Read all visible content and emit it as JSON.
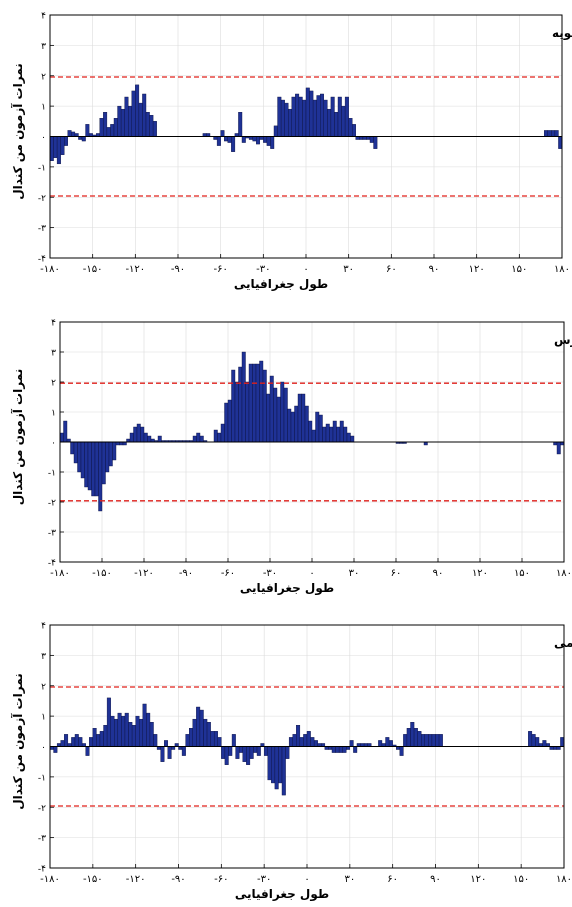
{
  "colors": {
    "bar_fill": "#1f3296",
    "bar_stroke": "#0a0f3c",
    "threshold_line": "#e0201b",
    "grid": "#dcdcdc",
    "axis": "#000000",
    "background": "#ffffff"
  },
  "chart_data": [
    {
      "type": "bar",
      "title": "ماه ژانویه",
      "xlabel": "طول جغرافیایی",
      "ylabel": "نمرات آزمون من کندال",
      "xlim": [
        -180,
        180
      ],
      "ylim": [
        -4,
        4
      ],
      "xticks": [
        -180,
        -150,
        -120,
        -90,
        -60,
        -30,
        0,
        30,
        60,
        90,
        120,
        150,
        180
      ],
      "xtick_labels": [
        "-۱۸۰",
        "-۱۵۰",
        "-۱۲۰",
        "-۹۰",
        "-۶۰",
        "-۳۰",
        "۰",
        "۳۰",
        "۶۰",
        "۹۰",
        "۱۲۰",
        "۱۵۰",
        "۱۸۰"
      ],
      "yticks": [
        -4,
        -3,
        -2,
        -1,
        0,
        1,
        2,
        3,
        4
      ],
      "ytick_labels": [
        "-۴",
        "-۳",
        "-۲",
        "-۱",
        "۰",
        "۱",
        "۲",
        "۳",
        "۴"
      ],
      "thresholds": [
        1.96,
        -1.96
      ],
      "grid": true,
      "bar_width": 2.5,
      "x": [
        -180,
        -177.5,
        -175,
        -172.5,
        -170,
        -167.5,
        -165,
        -162.5,
        -160,
        -157.5,
        -155,
        -152.5,
        -150,
        -147.5,
        -145,
        -142.5,
        -140,
        -137.5,
        -135,
        -132.5,
        -130,
        -127.5,
        -125,
        -122.5,
        -120,
        -117.5,
        -115,
        -112.5,
        -110,
        -107.5,
        -72.5,
        -70,
        -65,
        -62.5,
        -60,
        -57.5,
        -55,
        -52.5,
        -50,
        -47.5,
        -45,
        -42.5,
        -40,
        -37.5,
        -35,
        -32.5,
        -30,
        -27.5,
        -25,
        -22.5,
        -20,
        -17.5,
        -15,
        -12.5,
        -10,
        -7.5,
        -5,
        -2.5,
        0,
        2.5,
        5,
        7.5,
        10,
        12.5,
        15,
        17.5,
        20,
        22.5,
        25,
        27.5,
        30,
        32.5,
        35,
        37.5,
        40,
        42.5,
        45,
        47.5,
        167.5,
        170,
        172.5,
        175,
        177.5
      ],
      "values": [
        -0.8,
        -0.7,
        -0.9,
        -0.6,
        -0.3,
        0.2,
        0.15,
        0.1,
        -0.1,
        -0.15,
        0.4,
        0.1,
        0.05,
        0.1,
        0.6,
        0.8,
        0.3,
        0.4,
        0.6,
        1.0,
        0.9,
        1.3,
        1.0,
        1.5,
        1.7,
        1.1,
        1.4,
        0.8,
        0.7,
        0.5,
        0.1,
        0.1,
        -0.1,
        -0.3,
        0.2,
        -0.15,
        -0.2,
        -0.5,
        0.1,
        0.8,
        -0.2,
        -0.05,
        -0.1,
        -0.15,
        -0.25,
        -0.1,
        -0.2,
        -0.3,
        -0.4,
        0.35,
        1.3,
        1.2,
        1.1,
        0.9,
        1.3,
        1.4,
        1.3,
        1.2,
        1.6,
        1.5,
        1.2,
        1.35,
        1.4,
        1.2,
        0.9,
        1.3,
        0.8,
        1.3,
        1.0,
        1.3,
        0.6,
        0.4,
        -0.1,
        -0.1,
        -0.1,
        -0.1,
        -0.2,
        -0.4,
        0.2,
        0.2,
        0.2,
        0.2,
        -0.4
      ]
    },
    {
      "type": "bar",
      "title": "ماه مارس",
      "xlabel": "طول جغرافیایی",
      "ylabel": "نمرات آزمون من کندال",
      "xlim": [
        -180,
        180
      ],
      "ylim": [
        -4,
        4
      ],
      "xticks": [
        -180,
        -150,
        -120,
        -90,
        -60,
        -30,
        0,
        30,
        60,
        90,
        120,
        150,
        180
      ],
      "xtick_labels": [
        "-۱۸۰",
        "-۱۵۰",
        "-۱۲۰",
        "-۹۰",
        "-۶۰",
        "-۳۰",
        "۰",
        "۳۰",
        "۶۰",
        "۹۰",
        "۱۲۰",
        "۱۵۰",
        "۱۸۰"
      ],
      "yticks": [
        -4,
        -3,
        -2,
        -1,
        0,
        1,
        2,
        3,
        4
      ],
      "ytick_labels": [
        "-۴",
        "-۳",
        "-۲",
        "-۱",
        "۰",
        "۱",
        "۲",
        "۳",
        "۴"
      ],
      "thresholds": [
        1.96,
        -1.96
      ],
      "grid": true,
      "bar_width": 2.5,
      "x": [
        -180,
        -177.5,
        -175,
        -172.5,
        -170,
        -167.5,
        -165,
        -162.5,
        -160,
        -157.5,
        -155,
        -152.5,
        -150,
        -147.5,
        -145,
        -142.5,
        -140,
        -137.5,
        -135,
        -132.5,
        -130,
        -127.5,
        -125,
        -122.5,
        -120,
        -117.5,
        -115,
        -112.5,
        -110,
        -107.5,
        -105,
        -102.5,
        -100,
        -97.5,
        -95,
        -92.5,
        -90,
        -87.5,
        -85,
        -82.5,
        -80,
        -77.5,
        -70,
        -67.5,
        -65,
        -62.5,
        -60,
        -57.5,
        -55,
        -52.5,
        -50,
        -47.5,
        -45,
        -42.5,
        -40,
        -37.5,
        -35,
        -32.5,
        -30,
        -27.5,
        -25,
        -22.5,
        -20,
        -17.5,
        -15,
        -12.5,
        -10,
        -7.5,
        -5,
        -2.5,
        0,
        2.5,
        5,
        7.5,
        10,
        12.5,
        15,
        17.5,
        20,
        22.5,
        25,
        27.5,
        60,
        62.5,
        65,
        80,
        172.5,
        175,
        177.5
      ],
      "values": [
        0.3,
        0.7,
        0.1,
        -0.4,
        -0.7,
        -1.0,
        -1.2,
        -1.5,
        -1.6,
        -1.8,
        -1.8,
        -2.3,
        -1.4,
        -1.0,
        -0.8,
        -0.6,
        -0.1,
        -0.1,
        -0.1,
        0.1,
        0.3,
        0.5,
        0.6,
        0.5,
        0.3,
        0.2,
        0.1,
        0.05,
        0.2,
        0.05,
        0.05,
        0.05,
        0.05,
        0.05,
        0.05,
        0.05,
        0.05,
        0.05,
        0.2,
        0.3,
        0.2,
        0.05,
        0.4,
        0.3,
        0.6,
        1.3,
        1.4,
        2.4,
        2.0,
        2.5,
        3.0,
        2.0,
        2.6,
        2.6,
        2.6,
        2.7,
        2.4,
        1.6,
        2.2,
        1.8,
        1.5,
        2.0,
        1.8,
        1.1,
        1.0,
        1.2,
        1.6,
        1.6,
        1.2,
        0.7,
        0.4,
        1.0,
        0.9,
        0.5,
        0.6,
        0.5,
        0.7,
        0.5,
        0.7,
        0.5,
        0.3,
        0.2,
        -0.05,
        -0.05,
        -0.05,
        -0.1,
        -0.1,
        -0.4,
        -0.1
      ]
    },
    {
      "type": "bar",
      "title": "ماه می",
      "xlabel": "طول جغرافیایی",
      "ylabel": "نمرات آزمون من کندال",
      "xlim": [
        -180,
        180
      ],
      "ylim": [
        -4,
        4
      ],
      "xticks": [
        -180,
        -150,
        -120,
        -90,
        -60,
        -30,
        0,
        30,
        60,
        90,
        120,
        150,
        180
      ],
      "xtick_labels": [
        "-۱۸۰",
        "-۱۵۰",
        "-۱۲۰",
        "-۹۰",
        "-۶۰",
        "-۳۰",
        "۰",
        "۳۰",
        "۶۰",
        "۹۰",
        "۱۲۰",
        "۱۵۰",
        "۱۸۰"
      ],
      "yticks": [
        -4,
        -3,
        -2,
        -1,
        0,
        1,
        2,
        3,
        4
      ],
      "ytick_labels": [
        "-۴",
        "-۳",
        "-۲",
        "-۱",
        "۰",
        "۱",
        "۲",
        "۳",
        "۴"
      ],
      "thresholds": [
        1.96,
        -1.96
      ],
      "grid": true,
      "bar_width": 2.5,
      "x": [
        -180,
        -177.5,
        -175,
        -172.5,
        -170,
        -167.5,
        -165,
        -162.5,
        -160,
        -157.5,
        -155,
        -152.5,
        -150,
        -147.5,
        -145,
        -142.5,
        -140,
        -137.5,
        -135,
        -132.5,
        -130,
        -127.5,
        -125,
        -122.5,
        -120,
        -117.5,
        -115,
        -112.5,
        -110,
        -107.5,
        -105,
        -102.5,
        -100,
        -97.5,
        -95,
        -92.5,
        -90,
        -87.5,
        -85,
        -82.5,
        -80,
        -77.5,
        -75,
        -72.5,
        -70,
        -67.5,
        -65,
        -62.5,
        -60,
        -57.5,
        -55,
        -52.5,
        -50,
        -47.5,
        -45,
        -42.5,
        -40,
        -37.5,
        -35,
        -32.5,
        -30,
        -27.5,
        -25,
        -22.5,
        -20,
        -17.5,
        -15,
        -12.5,
        -10,
        -7.5,
        -5,
        -2.5,
        0,
        2.5,
        5,
        7.5,
        10,
        12.5,
        15,
        17.5,
        20,
        22.5,
        25,
        27.5,
        30,
        32.5,
        35,
        37.5,
        40,
        42.5,
        50,
        52.5,
        55,
        57.5,
        60,
        62.5,
        65,
        67.5,
        70,
        72.5,
        75,
        77.5,
        80,
        82.5,
        85,
        87.5,
        90,
        92.5,
        155,
        157.5,
        160,
        162.5,
        165,
        167.5,
        170,
        172.5,
        175,
        177.5
      ],
      "values": [
        -0.1,
        -0.2,
        0.1,
        0.2,
        0.4,
        0.1,
        0.3,
        0.4,
        0.3,
        0.1,
        -0.3,
        0.3,
        0.6,
        0.4,
        0.5,
        0.7,
        1.6,
        1.0,
        0.9,
        1.1,
        1.0,
        1.1,
        0.8,
        0.7,
        1.0,
        0.9,
        1.4,
        1.1,
        0.8,
        0.4,
        -0.1,
        -0.5,
        0.2,
        -0.4,
        -0.1,
        0.1,
        -0.1,
        -0.3,
        0.4,
        0.6,
        0.9,
        1.3,
        1.2,
        0.9,
        0.8,
        0.5,
        0.5,
        0.3,
        -0.4,
        -0.6,
        -0.3,
        0.4,
        -0.4,
        -0.2,
        -0.5,
        -0.6,
        -0.4,
        -0.2,
        -0.3,
        0.1,
        -0.3,
        -1.1,
        -1.2,
        -1.4,
        -1.2,
        -1.6,
        -0.4,
        0.3,
        0.4,
        0.7,
        0.3,
        0.4,
        0.5,
        0.3,
        0.2,
        0.1,
        0.1,
        -0.1,
        -0.1,
        -0.2,
        -0.2,
        -0.2,
        -0.2,
        -0.1,
        0.2,
        -0.2,
        0.1,
        0.1,
        0.1,
        0.1,
        0.2,
        0.1,
        0.3,
        0.2,
        0.05,
        -0.1,
        -0.3,
        0.4,
        0.6,
        0.8,
        0.6,
        0.5,
        0.4,
        0.4,
        0.4,
        0.4,
        0.4,
        0.4,
        0.5,
        0.4,
        0.3,
        0.1,
        0.2,
        0.1,
        -0.1,
        -0.1,
        -0.1,
        0.3
      ]
    }
  ]
}
